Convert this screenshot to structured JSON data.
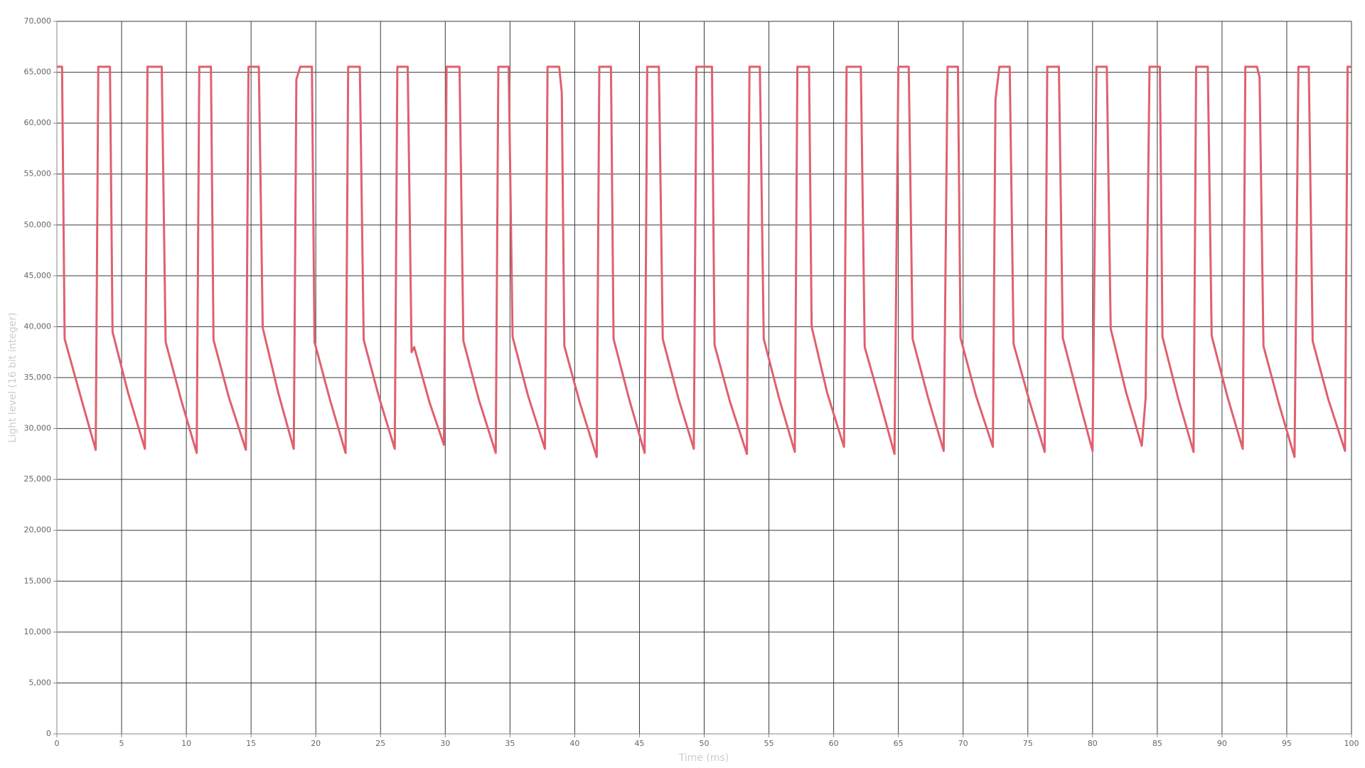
{
  "chart_data": {
    "type": "line",
    "x_label": "Time (ms)",
    "y_label": "Light level (16 bit integer)",
    "xlim": [
      0,
      100
    ],
    "ylim": [
      0,
      70000
    ],
    "xticks": [
      0,
      5,
      10,
      15,
      20,
      25,
      30,
      35,
      40,
      45,
      50,
      55,
      60,
      65,
      70,
      75,
      80,
      85,
      90,
      95,
      100
    ],
    "yticks": [
      0,
      {
        "value": 5000,
        "label": "5,000"
      },
      {
        "value": 10000,
        "label": "10,000"
      },
      {
        "value": 15000,
        "label": "15,000"
      },
      {
        "value": 20000,
        "label": "20,000"
      },
      {
        "value": 25000,
        "label": "25,000"
      },
      {
        "value": 30000,
        "label": "30,000"
      },
      {
        "value": 35000,
        "label": "35,000"
      },
      {
        "value": 40000,
        "label": "40,000"
      },
      {
        "value": 45000,
        "label": "45,000"
      },
      {
        "value": 50000,
        "label": "50,000"
      },
      {
        "value": 55000,
        "label": "55,000"
      },
      {
        "value": 60000,
        "label": "60,000"
      },
      {
        "value": 65000,
        "label": "65,000"
      },
      {
        "value": 70000,
        "label": "70,000"
      }
    ],
    "grid": true,
    "x": [
      0,
      0.4,
      0.6,
      1.8,
      3.0,
      3.2,
      4.1,
      4.3,
      5.5,
      6.8,
      7.0,
      8.1,
      8.4,
      9.6,
      10.8,
      11.0,
      11.9,
      12.1,
      13.3,
      14.6,
      14.8,
      15.6,
      15.9,
      17.1,
      18.3,
      18.5,
      18.8,
      19.7,
      19.9,
      21.1,
      22.3,
      22.5,
      23.4,
      23.7,
      24.9,
      26.1,
      26.3,
      27.1,
      27.4,
      27.6,
      28.8,
      29.9,
      30.1,
      31.1,
      31.4,
      32.6,
      33.9,
      34.1,
      34.9,
      35.2,
      36.4,
      37.7,
      37.9,
      38.8,
      39.0,
      39.2,
      40.4,
      41.7,
      41.9,
      42.8,
      43.0,
      44.2,
      45.4,
      45.6,
      46.5,
      46.8,
      48.0,
      49.2,
      49.4,
      50.6,
      50.8,
      52.0,
      53.3,
      53.5,
      54.3,
      54.6,
      55.8,
      57.0,
      57.2,
      58.1,
      58.3,
      59.5,
      60.6,
      60.8,
      61.0,
      62.1,
      62.4,
      63.6,
      64.7,
      65.0,
      65.8,
      66.1,
      67.3,
      68.5,
      68.8,
      69.6,
      69.8,
      71.0,
      72.3,
      72.5,
      72.8,
      73.6,
      73.9,
      75.1,
      76.3,
      76.5,
      77.4,
      77.7,
      78.9,
      80.0,
      80.3,
      81.1,
      81.4,
      82.6,
      83.8,
      84.1,
      84.4,
      85.2,
      85.4,
      86.6,
      87.8,
      88.0,
      88.9,
      89.2,
      90.4,
      91.6,
      91.8,
      92.7,
      92.9,
      93.2,
      94.4,
      95.6,
      95.9,
      96.7,
      97.0,
      98.2,
      99.5,
      99.7,
      100
    ],
    "series": [
      {
        "color": "#e0606e",
        "values": [
          65535,
          65535,
          38800,
          33300,
          27900,
          65535,
          65535,
          39500,
          33500,
          28000,
          65535,
          65535,
          38500,
          32800,
          27600,
          65535,
          65535,
          38700,
          33000,
          27900,
          65535,
          65535,
          39900,
          33500,
          28000,
          64300,
          65535,
          65535,
          38500,
          32800,
          27600,
          65535,
          65535,
          38700,
          33000,
          28000,
          65535,
          65535,
          37500,
          38000,
          32500,
          28400,
          65535,
          65535,
          38600,
          32800,
          27600,
          65535,
          65535,
          39000,
          33200,
          28000,
          65535,
          65535,
          63000,
          38100,
          32500,
          27200,
          65535,
          65535,
          38800,
          32900,
          27600,
          65535,
          65535,
          38800,
          33000,
          28000,
          65535,
          65535,
          38200,
          32600,
          27500,
          65535,
          65535,
          38800,
          32900,
          27700,
          65535,
          65535,
          40000,
          33500,
          29000,
          28200,
          65535,
          65535,
          38000,
          32600,
          27500,
          65535,
          65535,
          38800,
          33000,
          27800,
          65535,
          65535,
          38900,
          33200,
          28200,
          62300,
          65535,
          65535,
          38300,
          32800,
          27700,
          65535,
          65535,
          38900,
          33000,
          27800,
          65535,
          65535,
          39800,
          33500,
          28300,
          33000,
          65535,
          65535,
          39000,
          33000,
          27700,
          65535,
          65535,
          39100,
          33200,
          28000,
          65535,
          65535,
          64500,
          38100,
          32400,
          27200,
          65535,
          65535,
          38600,
          32900,
          27800,
          65535,
          65535
        ]
      }
    ]
  }
}
